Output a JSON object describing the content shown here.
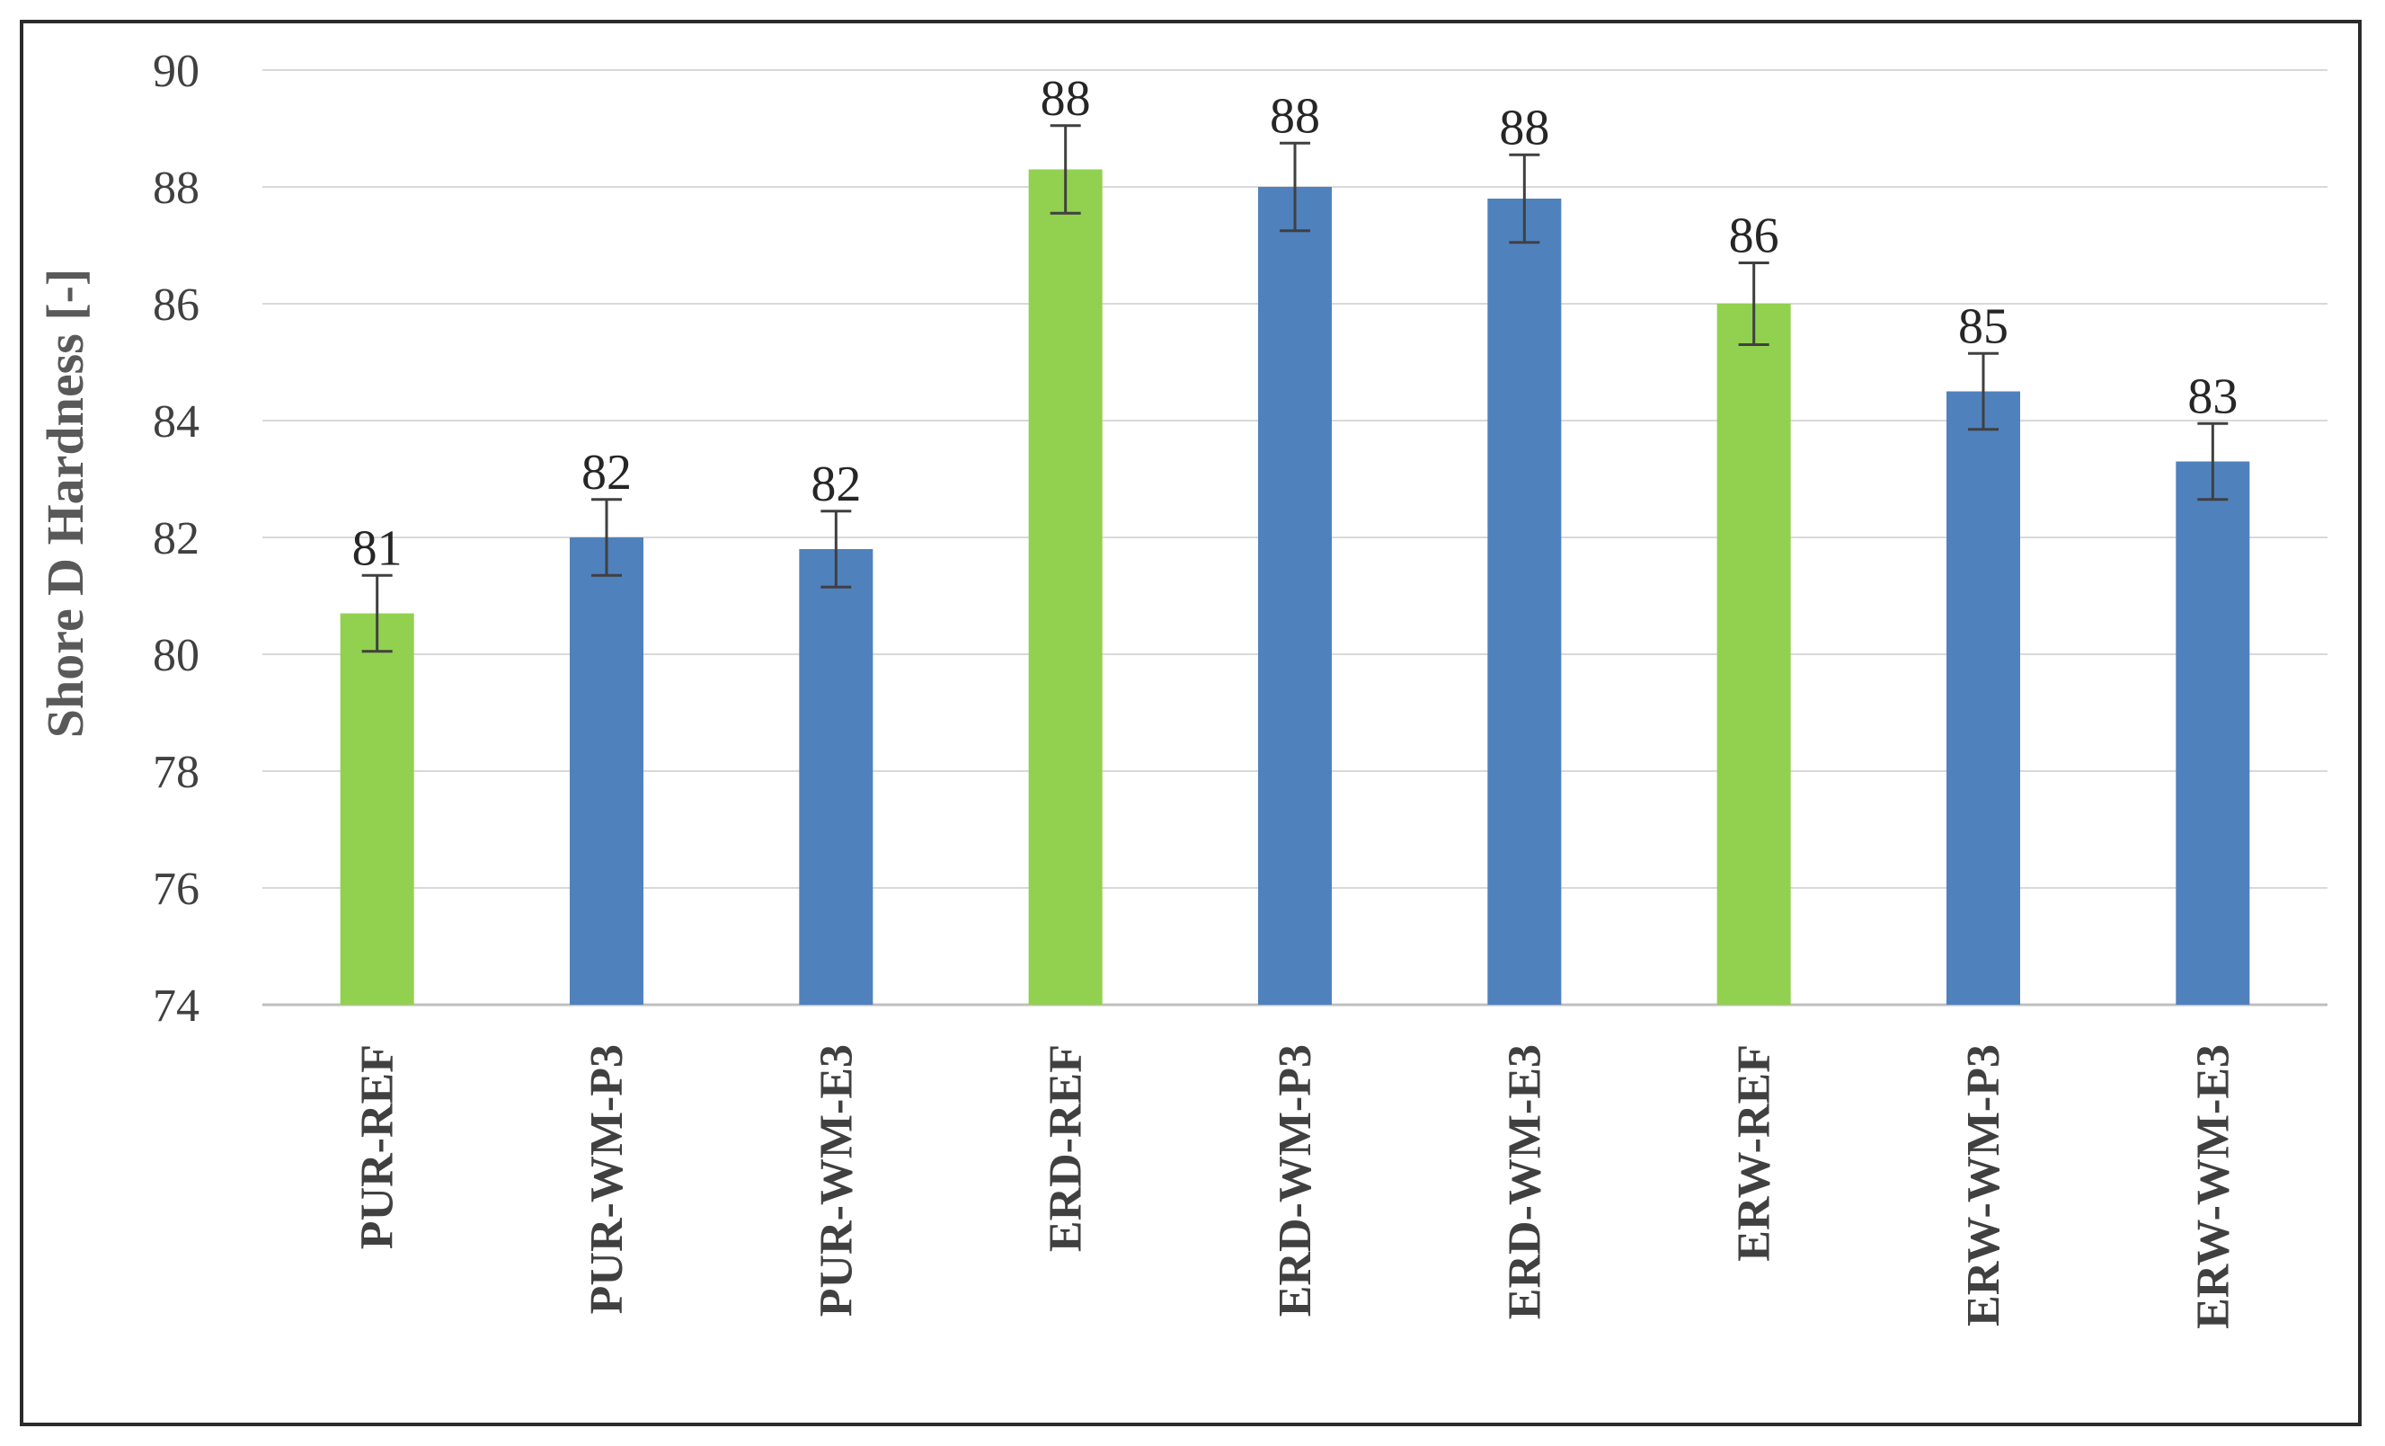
{
  "chart_data": {
    "type": "bar",
    "ylabel": "Shore D Hardness [-]",
    "xlabel": "",
    "ylim": [
      74,
      90
    ],
    "yticks": [
      74,
      76,
      78,
      80,
      82,
      84,
      86,
      88,
      90
    ],
    "grid": true,
    "categories": [
      "PUR-REF",
      "PUR-WM-P3",
      "PUR-WM-E3",
      "ERD-REF",
      "ERD-WM-P3",
      "ERD-WM-E3",
      "ERW-REF",
      "ERW-WM-P3",
      "ERW-WM-E3"
    ],
    "values": [
      80.7,
      82.0,
      81.8,
      88.3,
      88.0,
      87.8,
      86.0,
      84.5,
      83.3
    ],
    "errors": [
      0.65,
      0.65,
      0.65,
      0.75,
      0.75,
      0.75,
      0.7,
      0.65,
      0.65
    ],
    "data_labels": [
      "81",
      "82",
      "82",
      "88",
      "88",
      "88",
      "86",
      "85",
      "83"
    ],
    "bar_colors": [
      "#92d050",
      "#4f81bd",
      "#4f81bd",
      "#92d050",
      "#4f81bd",
      "#4f81bd",
      "#92d050",
      "#4f81bd",
      "#4f81bd"
    ]
  }
}
